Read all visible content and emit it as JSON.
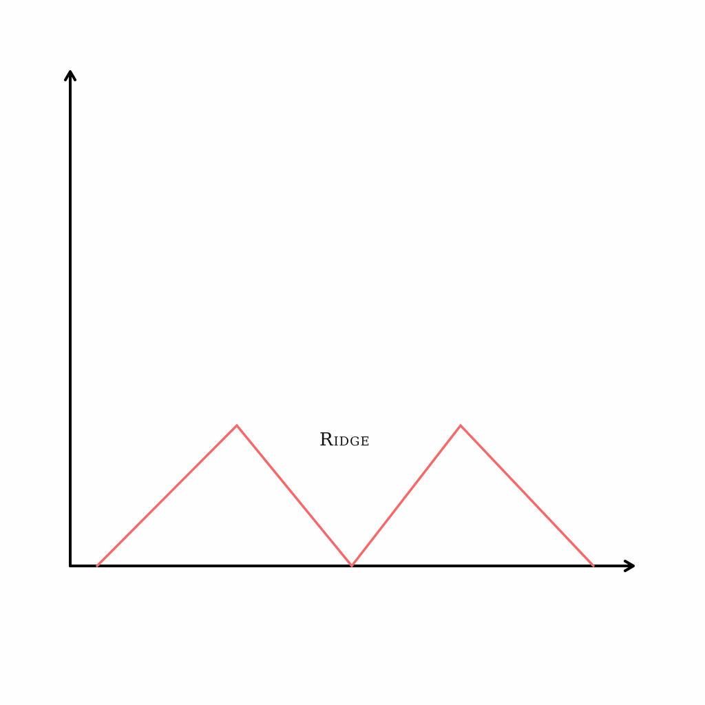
{
  "diagram": {
    "label": "Ridge",
    "line_color": "#f36a6a",
    "axis_color": "#000000",
    "background": "#fffefe",
    "shape": "two triangular peaks sitting on the horizontal axis"
  }
}
